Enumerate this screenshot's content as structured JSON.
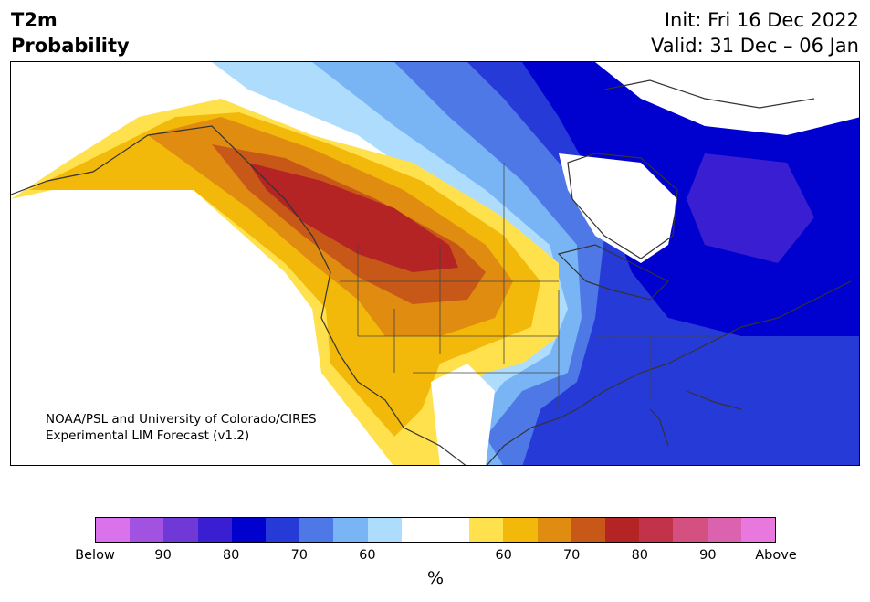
{
  "header": {
    "title_line1": "T2m",
    "title_line2": "Probability",
    "init": "Init: Fri 16 Dec 2022",
    "valid": "Valid: 31 Dec – 06 Jan"
  },
  "map": {
    "credit_line1": "NOAA/PSL and University of Colorado/CIRES",
    "credit_line2": "Experimental LIM Forecast (v1.2)"
  },
  "legend": {
    "unit": "%",
    "colors": [
      "#d972eb",
      "#a252e0",
      "#7038d6",
      "#3a1fd2",
      "#0000cf",
      "#263ad8",
      "#4e78e6",
      "#79b4f4",
      "#aedcfc",
      "#ffffff",
      "#ffffff",
      "#ffe14d",
      "#f2b90a",
      "#df8c10",
      "#c85818",
      "#b42424",
      "#c23248",
      "#d45080",
      "#da62ae",
      "#e878de"
    ],
    "ticks": [
      "Below",
      "90",
      "80",
      "70",
      "60",
      "60",
      "70",
      "80",
      "90",
      "Above"
    ]
  }
}
